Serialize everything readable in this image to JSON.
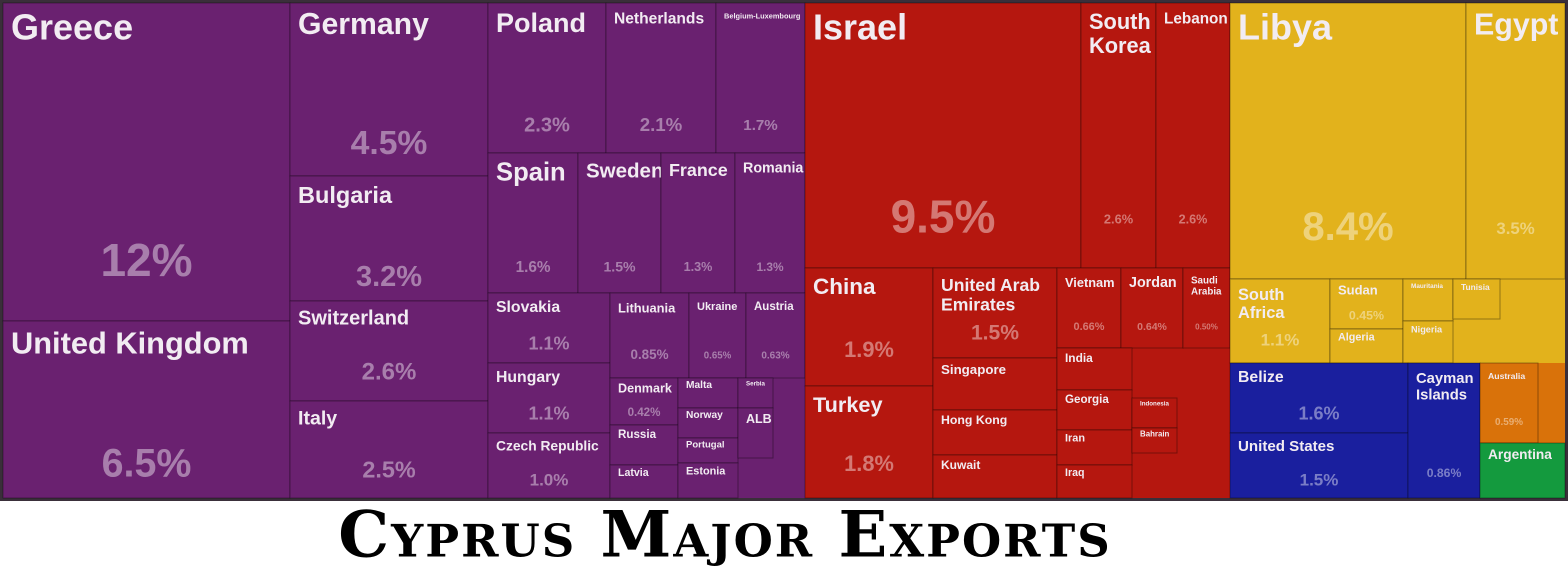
{
  "chart_data": {
    "type": "treemap",
    "title": "Cyprus Major Exports",
    "series": [
      {
        "color": "#6a2170",
        "categories": [
          "Greece",
          "United Kingdom",
          "Germany",
          "Bulgaria",
          "Switzerland",
          "Italy",
          "Poland",
          "Netherlands",
          "Belgium-Luxembourg",
          "Spain",
          "Sweden",
          "France",
          "Romania",
          "Slovakia",
          "Hungary",
          "Czech Republic",
          "Lithuania",
          "Ukraine",
          "Austria",
          "Denmark",
          "Russia",
          "Latvia",
          "Malta",
          "Norway",
          "Portugal",
          "Estonia",
          "Serbia",
          "ALB"
        ],
        "values": [
          12,
          6.5,
          4.5,
          3.2,
          2.6,
          2.5,
          2.3,
          2.1,
          1.7,
          1.6,
          1.5,
          1.3,
          1.3,
          1.1,
          1.1,
          1.0,
          0.85,
          0.65,
          0.63,
          0.42,
          0.4,
          0.3,
          0.35,
          0.3,
          0.25,
          0.25,
          0.15,
          0.2
        ],
        "value_labels": [
          "12%",
          "6.5%",
          "4.5%",
          "3.2%",
          "2.6%",
          "2.5%",
          "2.3%",
          "2.1%",
          "1.7%",
          "1.6%",
          "1.5%",
          "1.3%",
          "1.3%",
          "1.1%",
          "1.1%",
          "1.0%",
          "0.85%",
          "0.65%",
          "0.63%",
          "0.42%",
          null,
          null,
          null,
          null,
          null,
          null,
          null,
          null
        ]
      },
      {
        "color": "#b5170f",
        "categories": [
          "Israel",
          "South Korea",
          "Lebanon",
          "China",
          "Turkey",
          "United Arab Emirates",
          "Singapore",
          "Hong Kong",
          "Kuwait",
          "Vietnam",
          "Jordan",
          "Saudi Arabia",
          "India",
          "Georgia",
          "Iran",
          "Iraq",
          "Indonesia",
          "Bahrain"
        ],
        "values": [
          9.5,
          2.6,
          2.6,
          1.9,
          1.8,
          1.5,
          0.5,
          0.45,
          0.4,
          0.66,
          0.64,
          0.5,
          0.3,
          0.3,
          0.28,
          0.25,
          0.15,
          0.12
        ],
        "value_labels": [
          "9.5%",
          "2.6%",
          "2.6%",
          "1.9%",
          "1.8%",
          "1.5%",
          null,
          null,
          null,
          "0.66%",
          "0.64%",
          "0.50%",
          null,
          null,
          null,
          null,
          null,
          null
        ]
      },
      {
        "color": "#e2b21c",
        "categories": [
          "Libya",
          "Egypt",
          "South Africa",
          "Sudan",
          "Algeria",
          "Mauritania",
          "Nigeria",
          "Tunisia"
        ],
        "values": [
          8.4,
          3.5,
          1.1,
          0.45,
          0.4,
          0.3,
          0.3,
          0.25
        ],
        "value_labels": [
          "8.4%",
          "3.5%",
          "1.1%",
          "0.45%",
          null,
          null,
          null,
          null
        ]
      },
      {
        "color": "#1a1f9e",
        "categories": [
          "Belize",
          "United States",
          "Cayman Islands"
        ],
        "values": [
          1.6,
          1.5,
          0.86
        ],
        "value_labels": [
          "1.6%",
          "1.5%",
          "0.86%"
        ]
      },
      {
        "color": "#d9720a",
        "categories": [
          "Australia"
        ],
        "values": [
          0.59
        ],
        "value_labels": [
          "0.59%"
        ]
      },
      {
        "color": "#149a3e",
        "categories": [
          "Argentina"
        ],
        "values": [
          0.4
        ],
        "value_labels": [
          null
        ]
      }
    ]
  }
}
